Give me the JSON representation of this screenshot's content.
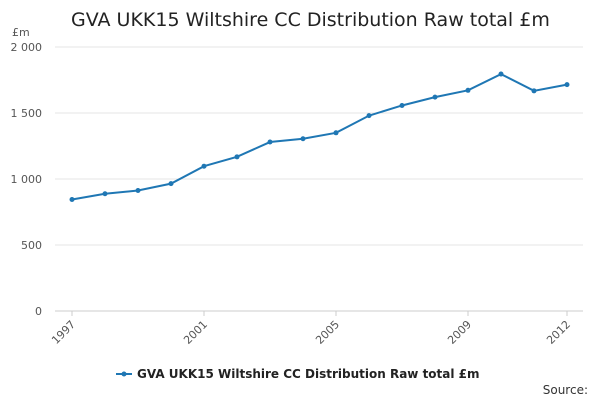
{
  "chart_data": {
    "type": "line",
    "title": "GVA UKK15 Wiltshire CC Distribution Raw total £m",
    "ylabel": "£m",
    "xlabel": "",
    "ylim": [
      0,
      2000
    ],
    "yticks": [
      {
        "value": 0,
        "label": "0"
      },
      {
        "value": 500,
        "label": "500"
      },
      {
        "value": 1000,
        "label": "1 000"
      },
      {
        "value": 1500,
        "label": "1 500"
      },
      {
        "value": 2000,
        "label": "2 000"
      }
    ],
    "xticks": [
      "1997",
      "2001",
      "2005",
      "2009",
      "2012"
    ],
    "x": [
      1997,
      1998,
      1999,
      2000,
      2001,
      2002,
      2003,
      2004,
      2005,
      2006,
      2007,
      2008,
      2009,
      2010,
      2011,
      2012
    ],
    "series": [
      {
        "name": "GVA UKK15 Wiltshire CC Distribution Raw total £m",
        "color": "#1f77b4",
        "values": [
          845,
          888,
          913,
          965,
          1097,
          1168,
          1280,
          1305,
          1350,
          1480,
          1557,
          1620,
          1672,
          1795,
          1668,
          1715
        ]
      }
    ],
    "legend_position": "bottom",
    "source_label": "Source:"
  }
}
